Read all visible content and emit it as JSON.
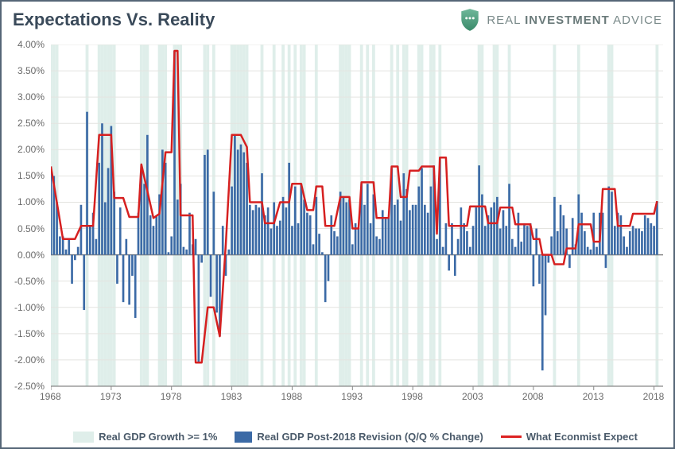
{
  "header": {
    "title": "Expectations Vs. Reality",
    "brand_prefix": "REAL ",
    "brand_bold": "INVESTMENT",
    "brand_suffix": " ADVICE"
  },
  "chart": {
    "type": "bar+line",
    "xlim": [
      1968,
      2018.75
    ],
    "ylim": [
      -2.5,
      4.0
    ],
    "ytick_step": 0.5,
    "ytick_format_suffix": "%",
    "ytick_decimals": 2,
    "xtick_start": 1968,
    "xtick_step": 5,
    "xtick_end": 2018,
    "background_color": "#ffffff",
    "grid_color": "#e4e4e0",
    "axis_color": "#888888",
    "bar_color": "#3b6aa6",
    "band_color": "#dfeeea",
    "line_color": "#d62020",
    "line_width": 2.5,
    "label_fontsize": 12,
    "label_color": "#6a6a6a",
    "border_color": "#556677",
    "bar_series": [
      {
        "x": 1968.0,
        "y": 1.68
      },
      {
        "x": 1968.25,
        "y": 1.5
      },
      {
        "x": 1968.5,
        "y": 1.0
      },
      {
        "x": 1968.75,
        "y": 0.35
      },
      {
        "x": 1969.0,
        "y": 0.35
      },
      {
        "x": 1969.25,
        "y": 0.1
      },
      {
        "x": 1969.5,
        "y": 0.3
      },
      {
        "x": 1969.75,
        "y": -0.55
      },
      {
        "x": 1970.0,
        "y": -0.1
      },
      {
        "x": 1970.25,
        "y": 0.15
      },
      {
        "x": 1970.5,
        "y": 0.95
      },
      {
        "x": 1970.75,
        "y": -1.05
      },
      {
        "x": 1971.0,
        "y": 2.72
      },
      {
        "x": 1971.25,
        "y": 0.55
      },
      {
        "x": 1971.5,
        "y": 0.8
      },
      {
        "x": 1971.75,
        "y": 0.3
      },
      {
        "x": 1972.0,
        "y": 1.75
      },
      {
        "x": 1972.25,
        "y": 2.5
      },
      {
        "x": 1972.5,
        "y": 1.0
      },
      {
        "x": 1972.75,
        "y": 1.65
      },
      {
        "x": 1973.0,
        "y": 2.45
      },
      {
        "x": 1973.25,
        "y": 1.2
      },
      {
        "x": 1973.5,
        "y": -0.55
      },
      {
        "x": 1973.75,
        "y": 0.9
      },
      {
        "x": 1974.0,
        "y": -0.9
      },
      {
        "x": 1974.25,
        "y": 0.3
      },
      {
        "x": 1974.5,
        "y": -0.95
      },
      {
        "x": 1974.75,
        "y": -0.4
      },
      {
        "x": 1975.0,
        "y": -1.2
      },
      {
        "x": 1975.25,
        "y": 0.8
      },
      {
        "x": 1975.5,
        "y": 1.7
      },
      {
        "x": 1975.75,
        "y": 1.35
      },
      {
        "x": 1976.0,
        "y": 2.28
      },
      {
        "x": 1976.25,
        "y": 0.75
      },
      {
        "x": 1976.5,
        "y": 0.55
      },
      {
        "x": 1976.75,
        "y": 0.75
      },
      {
        "x": 1977.0,
        "y": 1.15
      },
      {
        "x": 1977.25,
        "y": 2.0
      },
      {
        "x": 1977.5,
        "y": 1.75
      },
      {
        "x": 1977.75,
        "y": 0.05
      },
      {
        "x": 1978.0,
        "y": 0.35
      },
      {
        "x": 1978.25,
        "y": 3.88
      },
      {
        "x": 1978.5,
        "y": 1.05
      },
      {
        "x": 1978.75,
        "y": 1.35
      },
      {
        "x": 1979.0,
        "y": 0.15
      },
      {
        "x": 1979.25,
        "y": 0.1
      },
      {
        "x": 1979.5,
        "y": 0.8
      },
      {
        "x": 1979.75,
        "y": 0.2
      },
      {
        "x": 1980.0,
        "y": 0.3
      },
      {
        "x": 1980.25,
        "y": -2.05
      },
      {
        "x": 1980.5,
        "y": -0.15
      },
      {
        "x": 1980.75,
        "y": 1.9
      },
      {
        "x": 1981.0,
        "y": 2.0
      },
      {
        "x": 1981.25,
        "y": -0.8
      },
      {
        "x": 1981.5,
        "y": 1.2
      },
      {
        "x": 1981.75,
        "y": -1.1
      },
      {
        "x": 1982.0,
        "y": -1.55
      },
      {
        "x": 1982.25,
        "y": 0.55
      },
      {
        "x": 1982.5,
        "y": -0.4
      },
      {
        "x": 1982.75,
        "y": 0.1
      },
      {
        "x": 1983.0,
        "y": 1.3
      },
      {
        "x": 1983.25,
        "y": 2.28
      },
      {
        "x": 1983.5,
        "y": 2.0
      },
      {
        "x": 1983.75,
        "y": 2.1
      },
      {
        "x": 1984.0,
        "y": 1.95
      },
      {
        "x": 1984.25,
        "y": 1.75
      },
      {
        "x": 1984.5,
        "y": 0.95
      },
      {
        "x": 1984.75,
        "y": 0.85
      },
      {
        "x": 1985.0,
        "y": 0.95
      },
      {
        "x": 1985.25,
        "y": 0.9
      },
      {
        "x": 1985.5,
        "y": 1.55
      },
      {
        "x": 1985.75,
        "y": 0.75
      },
      {
        "x": 1986.0,
        "y": 0.9
      },
      {
        "x": 1986.25,
        "y": 0.5
      },
      {
        "x": 1986.5,
        "y": 1.0
      },
      {
        "x": 1986.75,
        "y": 0.55
      },
      {
        "x": 1987.0,
        "y": 0.65
      },
      {
        "x": 1987.25,
        "y": 1.1
      },
      {
        "x": 1987.5,
        "y": 0.9
      },
      {
        "x": 1987.75,
        "y": 1.75
      },
      {
        "x": 1988.0,
        "y": 0.55
      },
      {
        "x": 1988.25,
        "y": 1.3
      },
      {
        "x": 1988.5,
        "y": 0.6
      },
      {
        "x": 1988.75,
        "y": 1.35
      },
      {
        "x": 1989.0,
        "y": 1.05
      },
      {
        "x": 1989.25,
        "y": 0.8
      },
      {
        "x": 1989.5,
        "y": 0.75
      },
      {
        "x": 1989.75,
        "y": 0.2
      },
      {
        "x": 1990.0,
        "y": 1.1
      },
      {
        "x": 1990.25,
        "y": 0.4
      },
      {
        "x": 1990.5,
        "y": 0.05
      },
      {
        "x": 1990.75,
        "y": -0.9
      },
      {
        "x": 1991.0,
        "y": -0.5
      },
      {
        "x": 1991.25,
        "y": 0.75
      },
      {
        "x": 1991.5,
        "y": 0.45
      },
      {
        "x": 1991.75,
        "y": 0.35
      },
      {
        "x": 1992.0,
        "y": 1.2
      },
      {
        "x": 1992.25,
        "y": 1.1
      },
      {
        "x": 1992.5,
        "y": 1.0
      },
      {
        "x": 1992.75,
        "y": 1.05
      },
      {
        "x": 1993.0,
        "y": 0.2
      },
      {
        "x": 1993.25,
        "y": 0.6
      },
      {
        "x": 1993.5,
        "y": 0.5
      },
      {
        "x": 1993.75,
        "y": 1.35
      },
      {
        "x": 1994.0,
        "y": 0.95
      },
      {
        "x": 1994.25,
        "y": 1.35
      },
      {
        "x": 1994.5,
        "y": 0.6
      },
      {
        "x": 1994.75,
        "y": 1.15
      },
      {
        "x": 1995.0,
        "y": 0.35
      },
      {
        "x": 1995.25,
        "y": 0.3
      },
      {
        "x": 1995.5,
        "y": 0.85
      },
      {
        "x": 1995.75,
        "y": 0.7
      },
      {
        "x": 1996.0,
        "y": 0.7
      },
      {
        "x": 1996.25,
        "y": 1.65
      },
      {
        "x": 1996.5,
        "y": 0.95
      },
      {
        "x": 1996.75,
        "y": 1.05
      },
      {
        "x": 1997.0,
        "y": 0.65
      },
      {
        "x": 1997.25,
        "y": 1.55
      },
      {
        "x": 1997.5,
        "y": 1.25
      },
      {
        "x": 1997.75,
        "y": 0.85
      },
      {
        "x": 1998.0,
        "y": 0.95
      },
      {
        "x": 1998.25,
        "y": 0.95
      },
      {
        "x": 1998.5,
        "y": 1.3
      },
      {
        "x": 1998.75,
        "y": 1.65
      },
      {
        "x": 1999.0,
        "y": 0.95
      },
      {
        "x": 1999.25,
        "y": 0.8
      },
      {
        "x": 1999.5,
        "y": 1.3
      },
      {
        "x": 1999.75,
        "y": 1.7
      },
      {
        "x": 2000.0,
        "y": 0.3
      },
      {
        "x": 2000.25,
        "y": 1.85
      },
      {
        "x": 2000.5,
        "y": 0.15
      },
      {
        "x": 2000.75,
        "y": 0.6
      },
      {
        "x": 2001.0,
        "y": -0.3
      },
      {
        "x": 2001.25,
        "y": 0.6
      },
      {
        "x": 2001.5,
        "y": -0.4
      },
      {
        "x": 2001.75,
        "y": 0.3
      },
      {
        "x": 2002.0,
        "y": 0.9
      },
      {
        "x": 2002.25,
        "y": 0.6
      },
      {
        "x": 2002.5,
        "y": 0.45
      },
      {
        "x": 2002.75,
        "y": 0.15
      },
      {
        "x": 2003.0,
        "y": 0.55
      },
      {
        "x": 2003.25,
        "y": 0.9
      },
      {
        "x": 2003.5,
        "y": 1.7
      },
      {
        "x": 2003.75,
        "y": 1.15
      },
      {
        "x": 2004.0,
        "y": 0.55
      },
      {
        "x": 2004.25,
        "y": 0.75
      },
      {
        "x": 2004.5,
        "y": 0.9
      },
      {
        "x": 2004.75,
        "y": 1.0
      },
      {
        "x": 2005.0,
        "y": 1.1
      },
      {
        "x": 2005.25,
        "y": 0.5
      },
      {
        "x": 2005.5,
        "y": 0.85
      },
      {
        "x": 2005.75,
        "y": 0.55
      },
      {
        "x": 2006.0,
        "y": 1.35
      },
      {
        "x": 2006.25,
        "y": 0.3
      },
      {
        "x": 2006.5,
        "y": 0.15
      },
      {
        "x": 2006.75,
        "y": 0.8
      },
      {
        "x": 2007.0,
        "y": 0.25
      },
      {
        "x": 2007.25,
        "y": 0.6
      },
      {
        "x": 2007.5,
        "y": 0.55
      },
      {
        "x": 2007.75,
        "y": 0.6
      },
      {
        "x": 2008.0,
        "y": -0.6
      },
      {
        "x": 2008.25,
        "y": 0.5
      },
      {
        "x": 2008.5,
        "y": -0.55
      },
      {
        "x": 2008.75,
        "y": -2.2
      },
      {
        "x": 2009.0,
        "y": -1.15
      },
      {
        "x": 2009.25,
        "y": -0.15
      },
      {
        "x": 2009.5,
        "y": 0.35
      },
      {
        "x": 2009.75,
        "y": 1.1
      },
      {
        "x": 2010.0,
        "y": 0.45
      },
      {
        "x": 2010.25,
        "y": 0.95
      },
      {
        "x": 2010.5,
        "y": 0.75
      },
      {
        "x": 2010.75,
        "y": 0.5
      },
      {
        "x": 2011.0,
        "y": -0.25
      },
      {
        "x": 2011.25,
        "y": 0.7
      },
      {
        "x": 2011.5,
        "y": 0.2
      },
      {
        "x": 2011.75,
        "y": 1.15
      },
      {
        "x": 2012.0,
        "y": 0.8
      },
      {
        "x": 2012.25,
        "y": 0.45
      },
      {
        "x": 2012.5,
        "y": 0.15
      },
      {
        "x": 2012.75,
        "y": 0.1
      },
      {
        "x": 2013.0,
        "y": 0.8
      },
      {
        "x": 2013.25,
        "y": 0.15
      },
      {
        "x": 2013.5,
        "y": 0.8
      },
      {
        "x": 2013.75,
        "y": 0.8
      },
      {
        "x": 2014.0,
        "y": -0.25
      },
      {
        "x": 2014.25,
        "y": 1.3
      },
      {
        "x": 2014.5,
        "y": 1.2
      },
      {
        "x": 2014.75,
        "y": 0.55
      },
      {
        "x": 2015.0,
        "y": 0.8
      },
      {
        "x": 2015.25,
        "y": 0.75
      },
      {
        "x": 2015.5,
        "y": 0.35
      },
      {
        "x": 2015.75,
        "y": 0.15
      },
      {
        "x": 2016.0,
        "y": 0.45
      },
      {
        "x": 2016.25,
        "y": 0.55
      },
      {
        "x": 2016.5,
        "y": 0.5
      },
      {
        "x": 2016.75,
        "y": 0.5
      },
      {
        "x": 2017.0,
        "y": 0.45
      },
      {
        "x": 2017.25,
        "y": 0.75
      },
      {
        "x": 2017.5,
        "y": 0.7
      },
      {
        "x": 2017.75,
        "y": 0.6
      },
      {
        "x": 2018.0,
        "y": 0.55
      },
      {
        "x": 2018.25,
        "y": 1.02
      }
    ],
    "line_series": [
      {
        "x": 1968.0,
        "y": 1.68
      },
      {
        "x": 1969.0,
        "y": 0.3
      },
      {
        "x": 1970.0,
        "y": 0.3
      },
      {
        "x": 1970.5,
        "y": 0.55
      },
      {
        "x": 1971.0,
        "y": 0.55
      },
      {
        "x": 1971.5,
        "y": 0.55
      },
      {
        "x": 1972.0,
        "y": 2.28
      },
      {
        "x": 1973.0,
        "y": 2.28
      },
      {
        "x": 1973.25,
        "y": 1.08
      },
      {
        "x": 1974.0,
        "y": 1.08
      },
      {
        "x": 1974.5,
        "y": 0.72
      },
      {
        "x": 1975.25,
        "y": 0.72
      },
      {
        "x": 1975.5,
        "y": 1.72
      },
      {
        "x": 1976.5,
        "y": 0.7
      },
      {
        "x": 1977.0,
        "y": 0.78
      },
      {
        "x": 1977.5,
        "y": 1.95
      },
      {
        "x": 1978.0,
        "y": 1.95
      },
      {
        "x": 1978.25,
        "y": 3.88
      },
      {
        "x": 1978.5,
        "y": 3.88
      },
      {
        "x": 1978.75,
        "y": 0.75
      },
      {
        "x": 1979.75,
        "y": 0.75
      },
      {
        "x": 1980.0,
        "y": -2.05
      },
      {
        "x": 1980.5,
        "y": -2.05
      },
      {
        "x": 1981.0,
        "y": -1.0
      },
      {
        "x": 1981.5,
        "y": -1.0
      },
      {
        "x": 1982.0,
        "y": -1.55
      },
      {
        "x": 1982.5,
        "y": 0.2
      },
      {
        "x": 1983.0,
        "y": 2.28
      },
      {
        "x": 1983.75,
        "y": 2.28
      },
      {
        "x": 1984.25,
        "y": 2.05
      },
      {
        "x": 1984.5,
        "y": 1.0
      },
      {
        "x": 1985.5,
        "y": 1.0
      },
      {
        "x": 1985.75,
        "y": 0.6
      },
      {
        "x": 1986.5,
        "y": 0.6
      },
      {
        "x": 1987.0,
        "y": 1.0
      },
      {
        "x": 1987.75,
        "y": 1.0
      },
      {
        "x": 1988.0,
        "y": 1.35
      },
      {
        "x": 1988.75,
        "y": 1.35
      },
      {
        "x": 1989.25,
        "y": 0.85
      },
      {
        "x": 1989.75,
        "y": 0.85
      },
      {
        "x": 1990.0,
        "y": 1.3
      },
      {
        "x": 1990.5,
        "y": 1.3
      },
      {
        "x": 1990.75,
        "y": 0.55
      },
      {
        "x": 1991.5,
        "y": 0.55
      },
      {
        "x": 1992.0,
        "y": 1.1
      },
      {
        "x": 1992.75,
        "y": 1.1
      },
      {
        "x": 1993.0,
        "y": 0.5
      },
      {
        "x": 1993.5,
        "y": 0.5
      },
      {
        "x": 1993.75,
        "y": 1.38
      },
      {
        "x": 1994.75,
        "y": 1.38
      },
      {
        "x": 1995.0,
        "y": 0.7
      },
      {
        "x": 1996.0,
        "y": 0.7
      },
      {
        "x": 1996.25,
        "y": 1.68
      },
      {
        "x": 1996.75,
        "y": 1.68
      },
      {
        "x": 1997.0,
        "y": 1.1
      },
      {
        "x": 1997.5,
        "y": 1.1
      },
      {
        "x": 1997.75,
        "y": 1.6
      },
      {
        "x": 1998.5,
        "y": 1.6
      },
      {
        "x": 1998.75,
        "y": 1.68
      },
      {
        "x": 1999.75,
        "y": 1.68
      },
      {
        "x": 2000.0,
        "y": 0.4
      },
      {
        "x": 2000.25,
        "y": 1.85
      },
      {
        "x": 2000.75,
        "y": 1.85
      },
      {
        "x": 2001.0,
        "y": 0.55
      },
      {
        "x": 2002.5,
        "y": 0.55
      },
      {
        "x": 2002.75,
        "y": 0.92
      },
      {
        "x": 2004.0,
        "y": 0.92
      },
      {
        "x": 2004.25,
        "y": 0.6
      },
      {
        "x": 2005.0,
        "y": 0.6
      },
      {
        "x": 2005.25,
        "y": 0.9
      },
      {
        "x": 2006.25,
        "y": 0.9
      },
      {
        "x": 2006.5,
        "y": 0.58
      },
      {
        "x": 2007.75,
        "y": 0.58
      },
      {
        "x": 2008.0,
        "y": 0.3
      },
      {
        "x": 2008.5,
        "y": 0.3
      },
      {
        "x": 2008.75,
        "y": 0.0
      },
      {
        "x": 2009.5,
        "y": 0.0
      },
      {
        "x": 2009.75,
        "y": -0.18
      },
      {
        "x": 2010.5,
        "y": -0.18
      },
      {
        "x": 2010.75,
        "y": 0.12
      },
      {
        "x": 2011.5,
        "y": 0.12
      },
      {
        "x": 2011.75,
        "y": 0.58
      },
      {
        "x": 2012.75,
        "y": 0.58
      },
      {
        "x": 2013.0,
        "y": 0.25
      },
      {
        "x": 2013.5,
        "y": 0.25
      },
      {
        "x": 2013.75,
        "y": 1.25
      },
      {
        "x": 2014.75,
        "y": 1.25
      },
      {
        "x": 2015.0,
        "y": 0.55
      },
      {
        "x": 2016.0,
        "y": 0.55
      },
      {
        "x": 2016.25,
        "y": 0.78
      },
      {
        "x": 2017.5,
        "y": 0.78
      },
      {
        "x": 2018.0,
        "y": 0.78
      },
      {
        "x": 2018.25,
        "y": 1.02
      }
    ]
  },
  "legend": {
    "band": "Real GDP Growth >= 1%",
    "bar": "Real GDP Post-2018 Revision (Q/Q % Change)",
    "line": "What Econmist Expect"
  }
}
